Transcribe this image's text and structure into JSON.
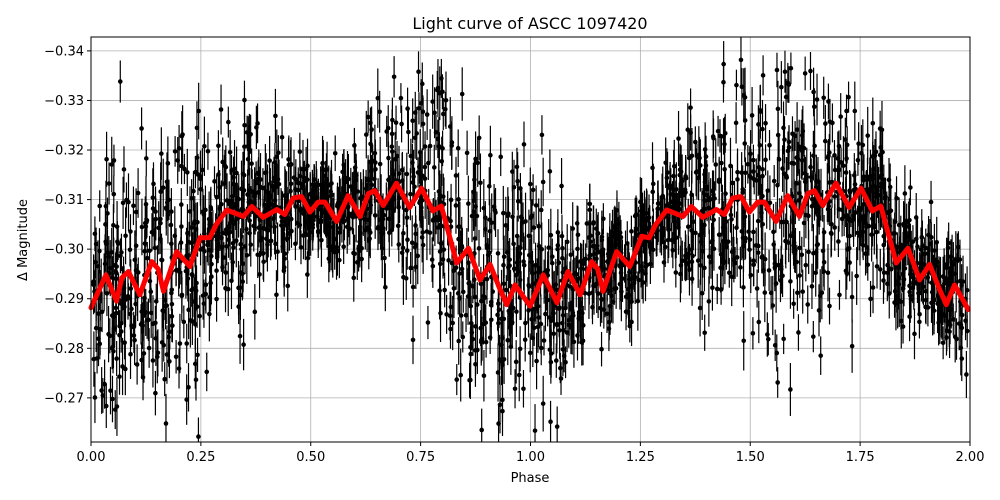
{
  "chart_data": {
    "type": "scatter",
    "title": "Light curve of ASCC 1097420",
    "xlabel": "Phase",
    "ylabel": "Δ Magnitude",
    "xlim": [
      0.0,
      2.0
    ],
    "ylim": [
      -0.2611,
      -0.3428
    ],
    "y_inverted": true,
    "grid": true,
    "xticks": [
      0.0,
      0.25,
      0.5,
      0.75,
      1.0,
      1.25,
      1.5,
      1.75,
      2.0
    ],
    "xtick_labels": [
      "0.00",
      "0.25",
      "0.50",
      "0.75",
      "1.00",
      "1.25",
      "1.50",
      "1.75",
      "2.00"
    ],
    "yticks": [
      -0.34,
      -0.33,
      -0.32,
      -0.31,
      -0.3,
      -0.29,
      -0.28,
      -0.27
    ],
    "ytick_labels": [
      "−0.34",
      "−0.33",
      "−0.32",
      "−0.31",
      "−0.30",
      "−0.29",
      "−0.28",
      "−0.27"
    ],
    "colors": {
      "points": "#000000",
      "curve": "#ff0000",
      "grid": "#b0b0b0"
    },
    "scatter_description_spread": 0.012,
    "curve": {
      "x": [
        0.0,
        0.034,
        0.058,
        0.07,
        0.085,
        0.111,
        0.138,
        0.153,
        0.165,
        0.195,
        0.225,
        0.248,
        0.27,
        0.285,
        0.309,
        0.347,
        0.366,
        0.392,
        0.423,
        0.441,
        0.46,
        0.479,
        0.498,
        0.517,
        0.532,
        0.559,
        0.585,
        0.612,
        0.631,
        0.646,
        0.665,
        0.695,
        0.725,
        0.752,
        0.778,
        0.797,
        0.832,
        0.859,
        0.885,
        0.908,
        0.931,
        0.946,
        0.965,
        0.999,
        1.029,
        1.06,
        1.085,
        1.113,
        1.139,
        1.153,
        1.165,
        1.196,
        1.226,
        1.253,
        1.27,
        1.285,
        1.31,
        1.347,
        1.366,
        1.392,
        1.423,
        1.441,
        1.46,
        1.479,
        1.498,
        1.517,
        1.532,
        1.559,
        1.585,
        1.612,
        1.631,
        1.646,
        1.665,
        1.695,
        1.725,
        1.752,
        1.778,
        1.797,
        1.832,
        1.859,
        1.885,
        1.908,
        1.931,
        1.946,
        1.965,
        1.996
      ],
      "y": [
        -0.2882,
        -0.2948,
        -0.2895,
        -0.2942,
        -0.2955,
        -0.2908,
        -0.2975,
        -0.296,
        -0.2915,
        -0.2995,
        -0.2965,
        -0.3023,
        -0.3023,
        -0.305,
        -0.3079,
        -0.3066,
        -0.3086,
        -0.3064,
        -0.308,
        -0.307,
        -0.3103,
        -0.3106,
        -0.3075,
        -0.3095,
        -0.3095,
        -0.3056,
        -0.3108,
        -0.3066,
        -0.3112,
        -0.3118,
        -0.3088,
        -0.3133,
        -0.3084,
        -0.3123,
        -0.3077,
        -0.3087,
        -0.2972,
        -0.3002,
        -0.2938,
        -0.2969,
        -0.2918,
        -0.2888,
        -0.2928,
        -0.2885,
        -0.2948,
        -0.2892,
        -0.2955,
        -0.2908,
        -0.2975,
        -0.296,
        -0.2915,
        -0.2995,
        -0.2965,
        -0.3026,
        -0.3023,
        -0.305,
        -0.3079,
        -0.3066,
        -0.3086,
        -0.3064,
        -0.308,
        -0.307,
        -0.3103,
        -0.3106,
        -0.3075,
        -0.3095,
        -0.3095,
        -0.3056,
        -0.3108,
        -0.3066,
        -0.3112,
        -0.3118,
        -0.3088,
        -0.3133,
        -0.3084,
        -0.3123,
        -0.3077,
        -0.3087,
        -0.2972,
        -0.3002,
        -0.2938,
        -0.2969,
        -0.2918,
        -0.2888,
        -0.2928,
        -0.2878
      ]
    }
  }
}
